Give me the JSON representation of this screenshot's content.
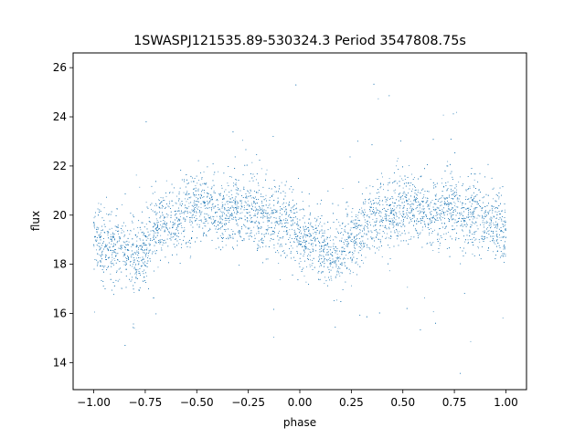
{
  "chart_data": {
    "type": "scatter",
    "title": "1SWASPJ121535.89-530324.3 Period 3547808.75s",
    "xlabel": "phase",
    "ylabel": "flux",
    "xlim": [
      -1.1,
      1.1
    ],
    "ylim": [
      12.9,
      26.6
    ],
    "x_ticks": [
      -1.0,
      -0.75,
      -0.5,
      -0.25,
      0.0,
      0.25,
      0.5,
      0.75,
      1.0
    ],
    "x_tick_labels": [
      "−1.00",
      "−0.75",
      "−0.50",
      "−0.25",
      "0.00",
      "0.25",
      "0.50",
      "0.75",
      "1.00"
    ],
    "y_ticks": [
      14,
      16,
      18,
      20,
      22,
      24,
      26
    ],
    "y_tick_labels": [
      "14",
      "16",
      "18",
      "20",
      "22",
      "24",
      "26"
    ],
    "grid": false,
    "marker_color": "#1f77b4",
    "series": [
      {
        "x": [
          -1.0,
          -0.95,
          -0.9,
          -0.85,
          -0.8,
          -0.75,
          -0.7,
          -0.65,
          -0.6,
          -0.55,
          -0.5,
          -0.45,
          -0.4,
          -0.35,
          -0.3,
          -0.25,
          -0.2,
          -0.15,
          -0.1,
          -0.05,
          0.0,
          0.05,
          0.1,
          0.15,
          0.2,
          0.25,
          0.3,
          0.35,
          0.4,
          0.45,
          0.5,
          0.55,
          0.6,
          0.65,
          0.7,
          0.75,
          0.8,
          0.85,
          0.9,
          0.95,
          1.0
        ],
        "y": [
          19.2,
          18.6,
          18.8,
          18.4,
          18.3,
          18.6,
          19.4,
          19.8,
          19.9,
          20.2,
          20.4,
          20.3,
          20.1,
          20.0,
          20.2,
          20.3,
          20.0,
          19.8,
          19.9,
          19.6,
          19.3,
          18.9,
          18.7,
          18.3,
          18.6,
          18.9,
          19.5,
          19.8,
          20.0,
          20.1,
          20.4,
          20.3,
          20.2,
          20.0,
          20.2,
          20.3,
          20.1,
          19.9,
          19.8,
          19.6,
          19.3
        ]
      }
    ]
  }
}
